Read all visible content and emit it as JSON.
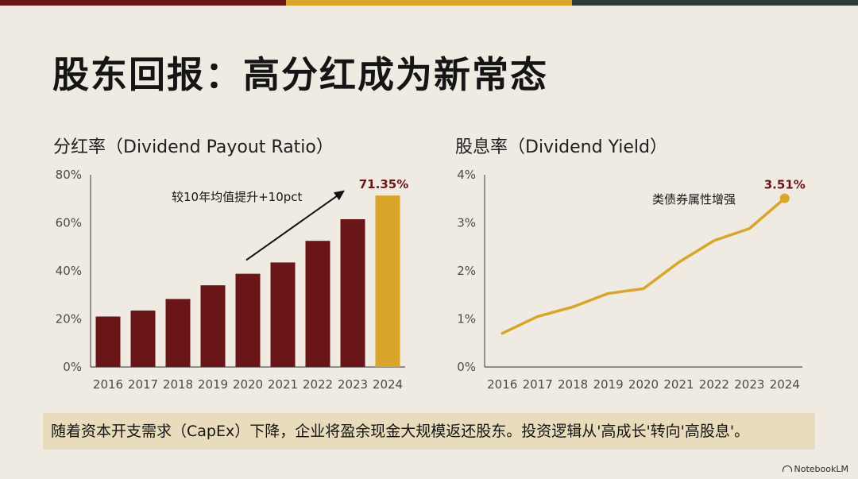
{
  "colors": {
    "background": "#efebe2",
    "bar_main": "#6a1619",
    "bar_highlight": "#d9a52a",
    "line": "#d9a52a",
    "accent_text": "#6a1619",
    "note_band": "#e9dcbc"
  },
  "title": "股东回报：高分红成为新常态",
  "note": "随着资本开支需求（CapEx）下降，企业将盈余现金大规模返还股东。投资逻辑从'高成长'转向'高股息'。",
  "watermark": "NotebookLM",
  "chart_data": [
    {
      "type": "bar",
      "title": "分红率（Dividend Payout Ratio）",
      "categories": [
        "2016",
        "2017",
        "2018",
        "2019",
        "2020",
        "2021",
        "2022",
        "2023",
        "2024"
      ],
      "values": [
        21,
        23.5,
        28.3,
        34,
        38.8,
        43.5,
        52.5,
        61.5,
        71.35
      ],
      "ylim": [
        0,
        80
      ],
      "yticks": [
        0,
        20,
        40,
        60,
        80
      ],
      "tick_format": "{v}%",
      "highlight_last": true,
      "value_label": "71.35%",
      "annotation": "较10年均值提升+10pct"
    },
    {
      "type": "line",
      "title": "股息率（Dividend Yield）",
      "categories": [
        "2016",
        "2017",
        "2018",
        "2019",
        "2020",
        "2021",
        "2022",
        "2023",
        "2024"
      ],
      "values": [
        0.7,
        1.05,
        1.25,
        1.53,
        1.63,
        2.18,
        2.63,
        2.88,
        3.51
      ],
      "ylim": [
        0,
        4
      ],
      "yticks": [
        0,
        1,
        2,
        3,
        4
      ],
      "tick_format": "{v}%",
      "value_label": "3.51%",
      "annotation": "类债券属性增强"
    }
  ]
}
